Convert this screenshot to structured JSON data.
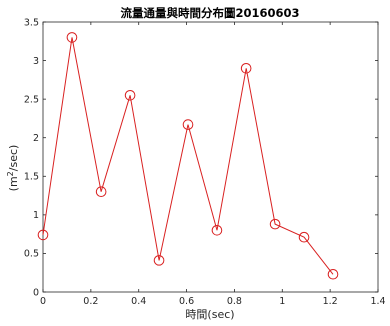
{
  "chart_data": {
    "type": "line",
    "title": "流量通量與時間分布圖20160603",
    "xlabel": "時間(sec)",
    "ylabel_base": "(m",
    "ylabel_sup": "2",
    "ylabel_rest": "/sec)",
    "xlim": [
      0,
      1.4
    ],
    "ylim": [
      0,
      3.5
    ],
    "xticks": [
      0,
      0.2,
      0.4,
      0.6,
      0.8,
      1,
      1.2,
      1.4
    ],
    "xtick_labels": [
      "0",
      "0.2",
      "0.4",
      "0.6",
      "0.8",
      "1",
      "1.2",
      "1.4"
    ],
    "yticks": [
      0,
      0.5,
      1,
      1.5,
      2,
      2.5,
      3,
      3.5
    ],
    "ytick_labels": [
      "0",
      "0.5",
      "1",
      "1.5",
      "2",
      "2.5",
      "3",
      "3.5"
    ],
    "grid": false,
    "box": true,
    "series": [
      {
        "color": "#d92121",
        "marker": "circle",
        "x": [
          0.0,
          0.121,
          0.243,
          0.364,
          0.485,
          0.606,
          0.727,
          0.849,
          0.97,
          1.091,
          1.212
        ],
        "y": [
          0.74,
          3.3,
          1.3,
          2.55,
          0.41,
          2.17,
          0.8,
          2.9,
          0.88,
          0.71,
          0.23
        ]
      }
    ]
  }
}
